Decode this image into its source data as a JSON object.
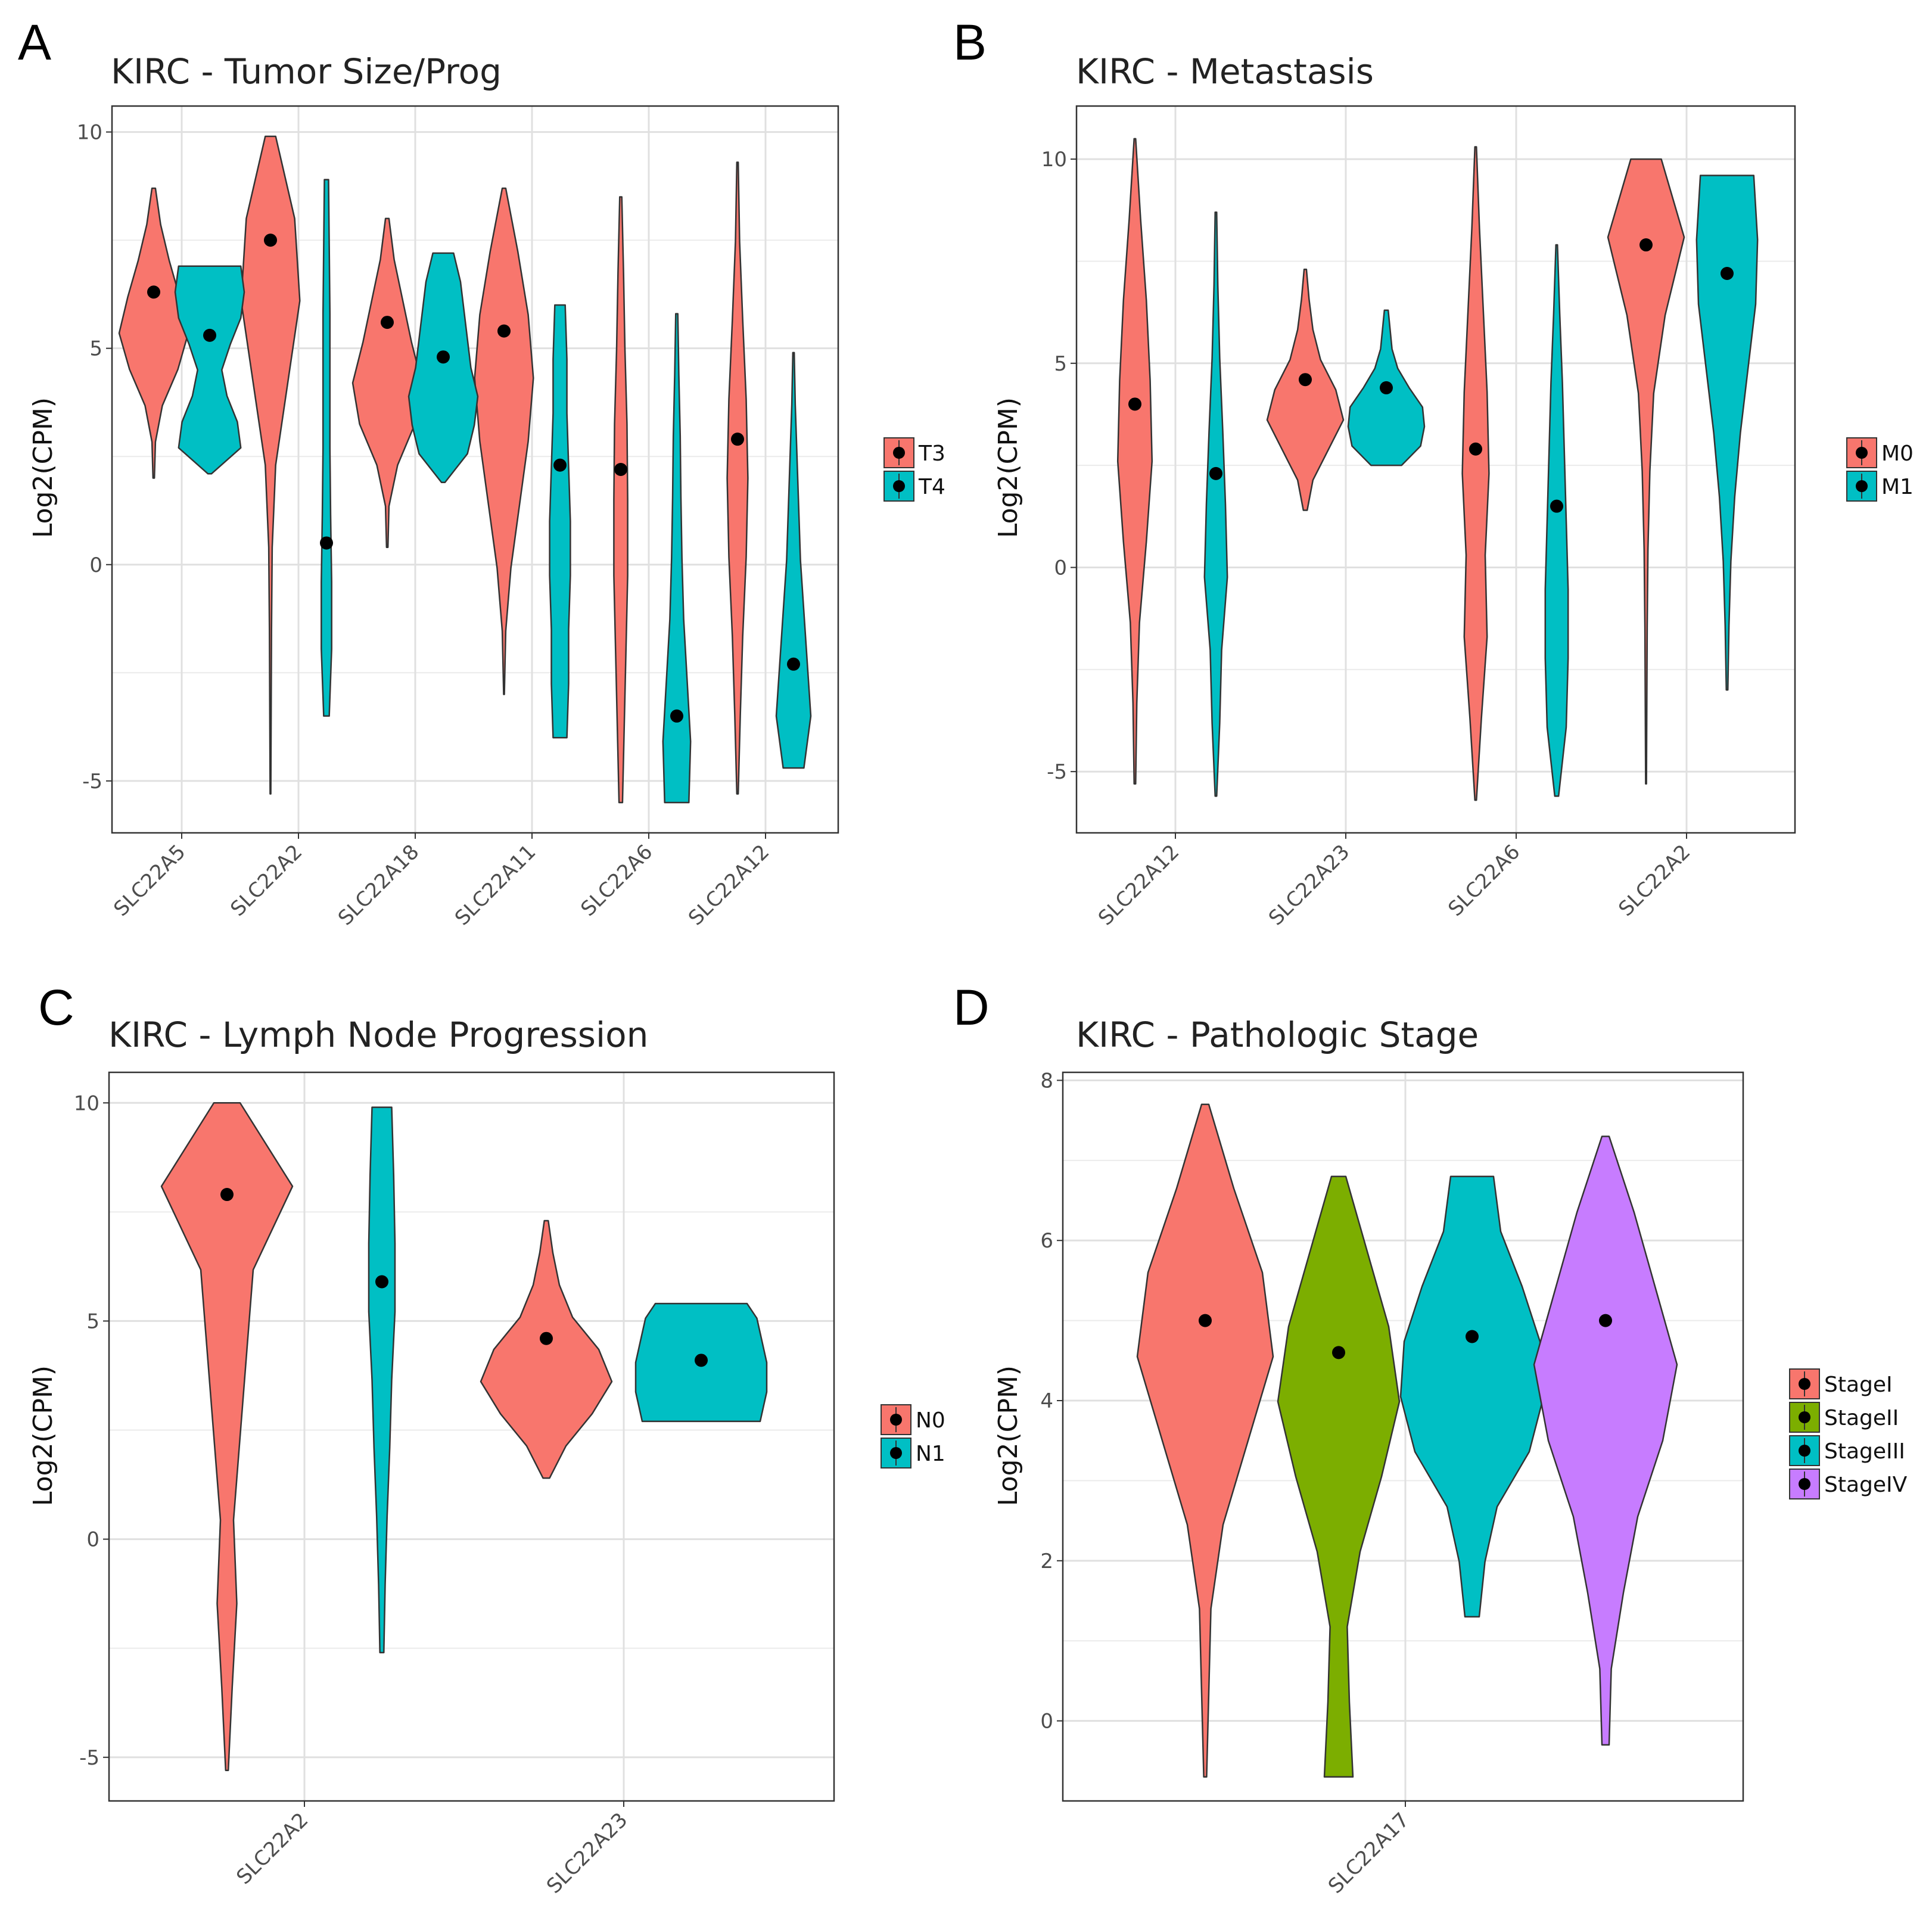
{
  "figure": {
    "colors": {
      "red": "#F8766D",
      "cyan": "#00BFC4",
      "green": "#7CAE00",
      "purple": "#C77CFF",
      "grid": "#EBEBEB",
      "border": "#333333"
    }
  },
  "chart_data": [
    {
      "panel": "A",
      "type": "violin",
      "title": "KIRC - Tumor Size/Prog",
      "xlabel": "",
      "ylabel": "Log2(CPM)",
      "ylim": [
        -6.2,
        10.6
      ],
      "yticks": [
        -5,
        0,
        5,
        10
      ],
      "yticklabels": [
        "-5",
        "0",
        "5",
        "10"
      ],
      "categories": [
        "SLC22A5",
        "SLC22A2",
        "SLC22A18",
        "SLC22A11",
        "SLC22A6",
        "SLC22A12"
      ],
      "legend": {
        "entries": [
          "T3",
          "T4"
        ],
        "colors": [
          "#F8766D",
          "#00BFC4"
        ],
        "placement": "right"
      },
      "series": [
        {
          "name": "T3",
          "color": "#F8766D",
          "mins": [
            2.0,
            -5.3,
            0.4,
            -3.0,
            -5.5,
            -5.3
          ],
          "maxs": [
            8.7,
            9.9,
            8.0,
            8.7,
            8.5,
            9.3
          ],
          "medians": [
            6.3,
            7.5,
            5.6,
            5.4,
            2.2,
            2.9
          ]
        },
        {
          "name": "T4",
          "color": "#00BFC4",
          "mins": [
            2.1,
            -3.5,
            1.9,
            -4.0,
            -5.5,
            -4.7
          ],
          "maxs": [
            6.9,
            8.9,
            7.2,
            6.0,
            5.8,
            4.9
          ],
          "medians": [
            5.3,
            0.5,
            4.8,
            2.3,
            -3.5,
            -2.3
          ]
        }
      ]
    },
    {
      "panel": "B",
      "type": "violin",
      "title": "KIRC - Metastasis",
      "xlabel": "",
      "ylabel": "Log2(CPM)",
      "ylim": [
        -6.5,
        11.3
      ],
      "yticks": [
        -5,
        0,
        5,
        10
      ],
      "yticklabels": [
        "-5",
        "0",
        "5",
        "10"
      ],
      "categories": [
        "SLC22A12",
        "SLC22A23",
        "SLC22A6",
        "SLC22A2"
      ],
      "legend": {
        "entries": [
          "M0",
          "M1"
        ],
        "colors": [
          "#F8766D",
          "#00BFC4"
        ],
        "placement": "right"
      },
      "series": [
        {
          "name": "M0",
          "color": "#F8766D",
          "mins": [
            -5.3,
            1.4,
            -5.7,
            -5.3
          ],
          "maxs": [
            10.5,
            7.3,
            10.3,
            10.0
          ],
          "medians": [
            4.0,
            4.6,
            2.9,
            7.9
          ]
        },
        {
          "name": "M1",
          "color": "#00BFC4",
          "mins": [
            -5.6,
            2.5,
            -5.6,
            -3.0
          ],
          "maxs": [
            8.7,
            6.3,
            7.9,
            9.6
          ],
          "medians": [
            2.3,
            4.4,
            1.5,
            7.2
          ]
        }
      ]
    },
    {
      "panel": "C",
      "type": "violin",
      "title": "KIRC - Lymph Node Progression",
      "xlabel": "",
      "ylabel": "Log2(CPM)",
      "ylim": [
        -6.0,
        10.7
      ],
      "yticks": [
        -5,
        0,
        5,
        10
      ],
      "yticklabels": [
        "-5",
        "0",
        "5",
        "10"
      ],
      "categories": [
        "SLC22A2",
        "SLC22A23"
      ],
      "legend": {
        "entries": [
          "N0",
          "N1"
        ],
        "colors": [
          "#F8766D",
          "#00BFC4"
        ],
        "placement": "right"
      },
      "series": [
        {
          "name": "N0",
          "color": "#F8766D",
          "mins": [
            -5.3,
            1.4
          ],
          "maxs": [
            10.0,
            7.3
          ],
          "medians": [
            7.9,
            4.6
          ]
        },
        {
          "name": "N1",
          "color": "#00BFC4",
          "mins": [
            -2.6,
            2.7
          ],
          "maxs": [
            9.9,
            5.4
          ],
          "medians": [
            5.9,
            4.1
          ]
        }
      ]
    },
    {
      "panel": "D",
      "type": "violin",
      "title": "KIRC - Pathologic Stage",
      "xlabel": "",
      "ylabel": "Log2(CPM)",
      "ylim": [
        -1.0,
        8.1
      ],
      "yticks": [
        0,
        2,
        4,
        6,
        8
      ],
      "yticklabels": [
        "0",
        "2",
        "4",
        "6",
        "8"
      ],
      "categories": [
        "SLC22A17"
      ],
      "legend": {
        "entries": [
          "StageI",
          "StageII",
          "StageIII",
          "StageIV"
        ],
        "colors": [
          "#F8766D",
          "#7CAE00",
          "#00BFC4",
          "#C77CFF"
        ],
        "placement": "right"
      },
      "series": [
        {
          "name": "StageI",
          "color": "#F8766D",
          "mins": [
            -0.7
          ],
          "maxs": [
            7.7
          ],
          "medians": [
            5.0
          ]
        },
        {
          "name": "StageII",
          "color": "#7CAE00",
          "mins": [
            -0.7
          ],
          "maxs": [
            6.8
          ],
          "medians": [
            4.6
          ]
        },
        {
          "name": "StageIII",
          "color": "#00BFC4",
          "mins": [
            1.3
          ],
          "maxs": [
            6.8
          ],
          "medians": [
            4.8
          ]
        },
        {
          "name": "StageIV",
          "color": "#C77CFF",
          "mins": [
            -0.3
          ],
          "maxs": [
            7.3
          ],
          "medians": [
            5.0
          ]
        }
      ]
    }
  ]
}
